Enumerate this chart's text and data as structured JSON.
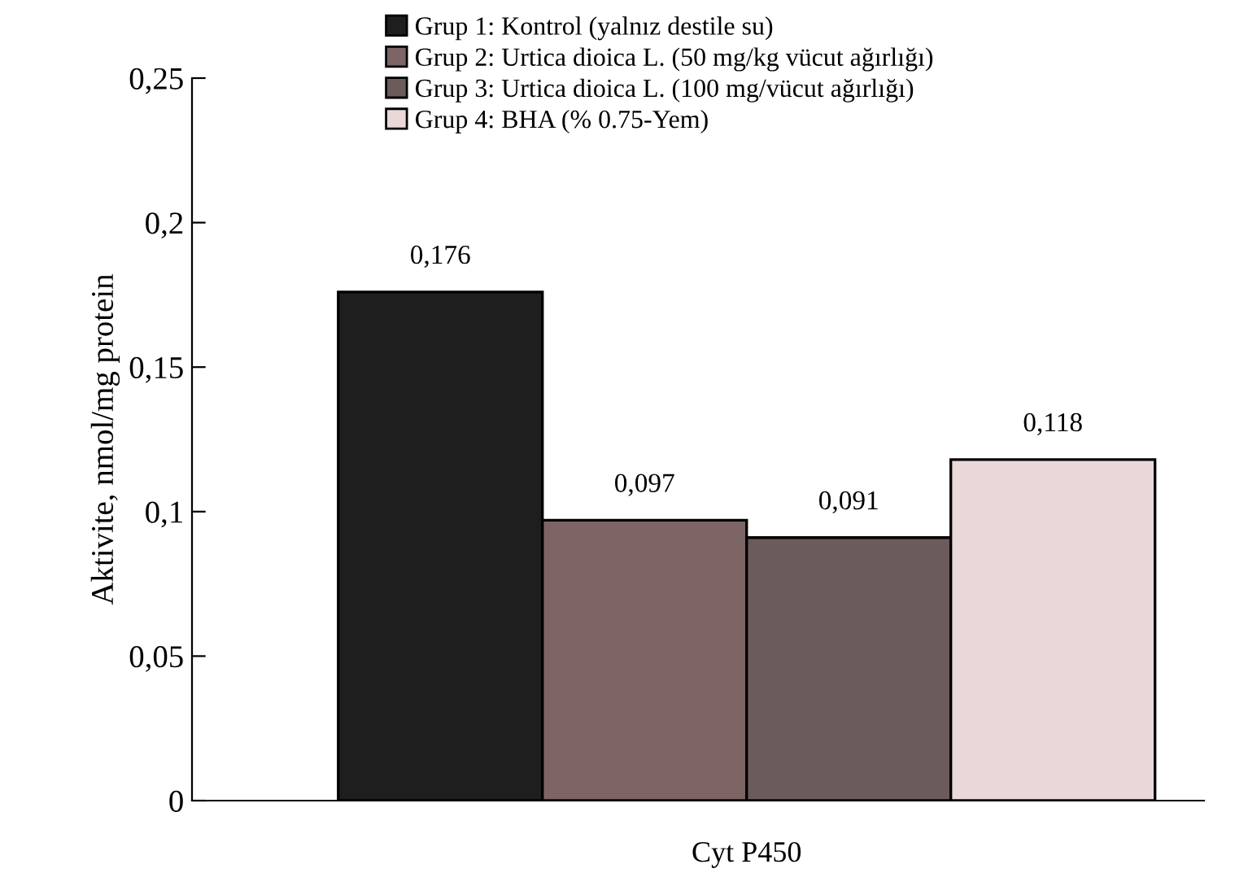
{
  "chart_data": {
    "type": "bar",
    "ylabel": "Aktivite, nmol/mg protein",
    "categories": [
      "Cyt P450"
    ],
    "series": [
      {
        "name": "Grup 1: Kontrol (yalnız destile su)",
        "color": "#1e1e1e",
        "values": [
          0.176
        ],
        "value_labels": [
          "0,176"
        ]
      },
      {
        "name": "Grup 2: Urtica dioica L. (50 mg/kg vücut ağırlığı)",
        "color": "#7d6565",
        "values": [
          0.097
        ],
        "value_labels": [
          "0,097"
        ]
      },
      {
        "name": "Grup 3: Urtica dioica L. (100 mg/vücut ağırlığı)",
        "color": "#6b5b5b",
        "values": [
          0.091
        ],
        "value_labels": [
          "0,091"
        ]
      },
      {
        "name": "Grup 4: BHA (% 0.75-Yem)",
        "color": "#ead8d8",
        "values": [
          0.118
        ],
        "value_labels": [
          "0,118"
        ]
      }
    ],
    "ylim": [
      0,
      0.25
    ],
    "yticks": [
      {
        "value": 0,
        "label": "0"
      },
      {
        "value": 0.05,
        "label": "0,05"
      },
      {
        "value": 0.1,
        "label": "0,1"
      },
      {
        "value": 0.15,
        "label": "0,15"
      },
      {
        "value": 0.2,
        "label": "0,2"
      },
      {
        "value": 0.25,
        "label": "0,25"
      }
    ],
    "grid": false,
    "legend": "top"
  }
}
